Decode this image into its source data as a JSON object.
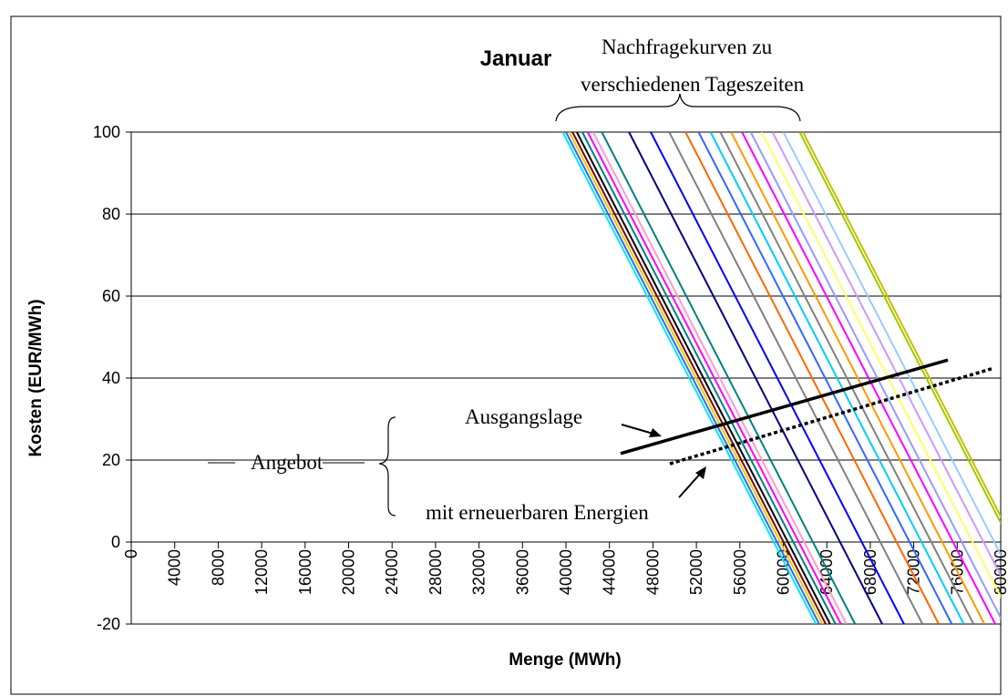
{
  "chart_data": {
    "type": "line",
    "title": "Januar",
    "xlabel": "Menge (MWh)",
    "ylabel": "Kosten (EUR/MWh)",
    "xlim": [
      0,
      80000
    ],
    "ylim": [
      -20,
      100
    ],
    "xticks": [
      0,
      4000,
      8000,
      12000,
      16000,
      20000,
      24000,
      28000,
      32000,
      36000,
      40000,
      44000,
      48000,
      52000,
      56000,
      60000,
      64000,
      68000,
      72000,
      76000,
      80000
    ],
    "yticks": [
      -20,
      0,
      20,
      40,
      60,
      80,
      100
    ],
    "grid": true,
    "annotations": [
      "Nachfragekurven zu",
      "verschiedenen Tageszeiten",
      "Ausgangslage",
      "Angebot",
      "mit erneuerbaren Energien"
    ],
    "series": [
      {
        "color": "#00e5ff",
        "x": [
          39700,
          63000
        ],
        "values": [
          100,
          -20
        ]
      },
      {
        "color": "#3366ff",
        "x": [
          40000,
          63300
        ],
        "values": [
          100,
          -20
        ]
      },
      {
        "color": "#e0d000",
        "x": [
          40300,
          63600
        ],
        "values": [
          100,
          -20
        ]
      },
      {
        "color": "#800000",
        "x": [
          40600,
          63900
        ],
        "values": [
          100,
          -20
        ]
      },
      {
        "color": "#000000",
        "x": [
          41000,
          64300
        ],
        "values": [
          100,
          -20
        ]
      },
      {
        "color": "#008080",
        "x": [
          41500,
          64800
        ],
        "values": [
          100,
          -20
        ]
      },
      {
        "color": "#ff00ff",
        "x": [
          42000,
          65300
        ],
        "values": [
          100,
          -20
        ]
      },
      {
        "color": "#ff99cc",
        "x": [
          42500,
          65800
        ],
        "values": [
          100,
          -20
        ]
      },
      {
        "color": "#008080",
        "x": [
          43300,
          66600
        ],
        "values": [
          100,
          -20
        ]
      },
      {
        "color": "#000080",
        "x": [
          45800,
          69100
        ],
        "values": [
          100,
          -20
        ]
      },
      {
        "color": "#0000ff",
        "x": [
          47800,
          71100
        ],
        "values": [
          100,
          -20
        ]
      },
      {
        "color": "#808080",
        "x": [
          49500,
          72800
        ],
        "values": [
          100,
          -20
        ]
      },
      {
        "color": "#ff6600",
        "x": [
          51000,
          74300
        ],
        "values": [
          100,
          -20
        ]
      },
      {
        "color": "#3366ff",
        "x": [
          52200,
          75500
        ],
        "values": [
          100,
          -20
        ]
      },
      {
        "color": "#00ccff",
        "x": [
          53300,
          76600
        ],
        "values": [
          100,
          -20
        ]
      },
      {
        "color": "#808080",
        "x": [
          54200,
          77500
        ],
        "values": [
          100,
          -20
        ]
      },
      {
        "color": "#ff9900",
        "x": [
          55200,
          78500
        ],
        "values": [
          100,
          -20
        ]
      },
      {
        "color": "#ff00ff",
        "x": [
          56200,
          79500
        ],
        "values": [
          100,
          -20
        ]
      },
      {
        "color": "#9999ff",
        "x": [
          57000,
          80300
        ],
        "values": [
          100,
          -20
        ]
      },
      {
        "color": "#ffff66",
        "x": [
          58000,
          81300
        ],
        "values": [
          100,
          -20
        ]
      },
      {
        "color": "#cc99ff",
        "x": [
          59000,
          82300
        ],
        "values": [
          100,
          -20
        ]
      },
      {
        "color": "#99ccff",
        "x": [
          60000,
          83300
        ],
        "values": [
          100,
          -20
        ]
      },
      {
        "color": "#99cc00",
        "x": [
          61500,
          84800
        ],
        "values": [
          100,
          -20
        ]
      },
      {
        "color": "#ccbb00",
        "x": [
          61800,
          85100
        ],
        "values": [
          100,
          -20
        ]
      },
      {
        "color": "#000000",
        "x": [
          45030,
          75140
        ],
        "values": [
          21.6,
          44.4
        ],
        "style": "solid"
      },
      {
        "color": "#000000",
        "x": [
          49560,
          79330
        ],
        "values": [
          19.1,
          42.4
        ],
        "style": "dotted"
      }
    ]
  }
}
